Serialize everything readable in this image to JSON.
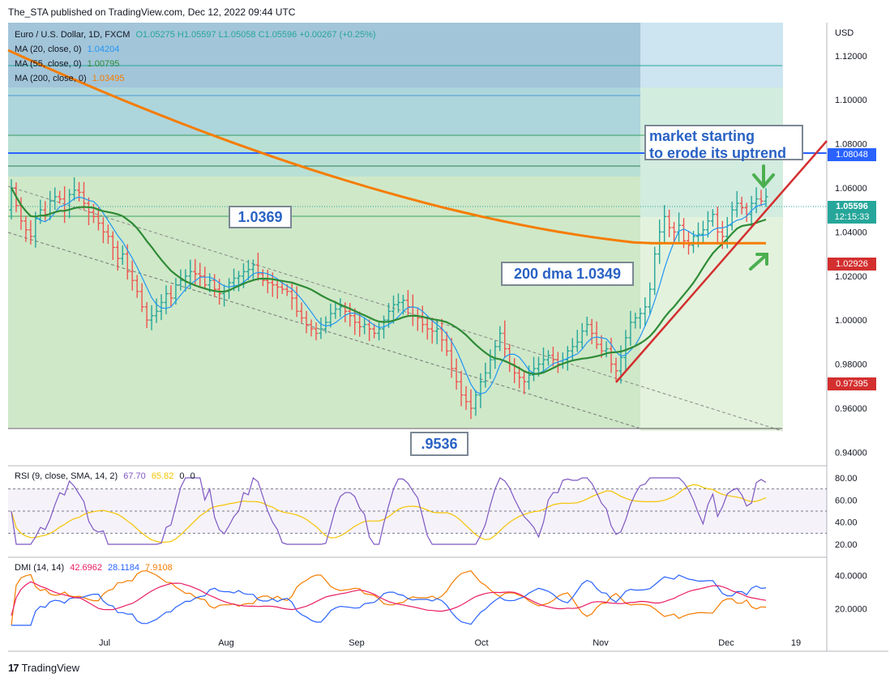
{
  "header": {
    "attribution": "The_STA published on TradingView.com, Dec 12, 2022 09:44 UTC"
  },
  "legend": {
    "symbol": "Euro / U.S. Dollar, 1D, FXCM",
    "ohlc": "O1.05275  H1.05597  L1.05058  C1.05596  +0.00267 (+0.25%)",
    "ma20": {
      "label": "MA (20, close, 0)",
      "value": "1.04204",
      "color": "#2196f3"
    },
    "ma55": {
      "label": "MA (55, close, 0)",
      "value": "1.00795",
      "color": "#2e8b36"
    },
    "ma200": {
      "label": "MA (200, close, 0)",
      "value": "1.03495",
      "color": "#f57c00"
    }
  },
  "rsi_legend": {
    "label": "RSI (9, close, SMA, 14, 2)",
    "v1": "67.70",
    "v2": "65.82",
    "v3": "0",
    "v4": "0"
  },
  "dmi_legend": {
    "label": "DMI (14, 14)",
    "v1": "42.6962",
    "v2": "28.1184",
    "v3": "7.9108"
  },
  "annotations": {
    "note": "market starting\nto erode its uptrend",
    "level_1": "1.0369",
    "level_2": ".9536",
    "dma": "200 dma 1.0349"
  },
  "price_tags": {
    "p1": {
      "text": "1.08048",
      "color": "#2962ff"
    },
    "p2a": "1.05596",
    "p2b": "12:15:33",
    "p2_color": "#26a69a",
    "p3": {
      "text": "1.02926",
      "color": "#d32f2f"
    },
    "p4": {
      "text": "0.97395",
      "color": "#d32f2f"
    }
  },
  "footer": {
    "logo": "17",
    "brand": "TradingView"
  },
  "chart_data": {
    "type": "candlestick",
    "instrument": "EUR/USD",
    "timeframe": "1D",
    "currency": "USD",
    "y_axis": {
      "ticks": [
        "1.12000",
        "1.10000",
        "1.08000",
        "1.06000",
        "1.04000",
        "1.02000",
        "1.00000",
        "0.98000",
        "0.96000",
        "0.94000"
      ],
      "range": [
        0.935,
        1.135
      ]
    },
    "x_axis": {
      "ticks": [
        "Jul",
        "Aug",
        "Sep",
        "Oct",
        "Nov",
        "Dec",
        "19"
      ]
    },
    "start_close": 1.05,
    "closes": [
      1.06,
      1.052,
      1.045,
      1.041,
      1.038,
      1.046,
      1.05,
      1.048,
      1.054,
      1.056,
      1.055,
      1.05,
      1.057,
      1.059,
      1.058,
      1.053,
      1.049,
      1.047,
      1.044,
      1.04,
      1.038,
      1.033,
      1.028,
      1.03,
      1.022,
      1.018,
      1.013,
      1.006,
      1.0,
      1.002,
      1.004,
      1.008,
      1.012,
      1.01,
      1.016,
      1.018,
      1.02,
      1.022,
      1.021,
      1.02,
      1.016,
      1.018,
      1.014,
      1.012,
      1.013,
      1.017,
      1.019,
      1.02,
      1.022,
      1.023,
      1.025,
      1.021,
      1.018,
      1.017,
      1.016,
      1.015,
      1.014,
      1.013,
      1.01,
      1.004,
      1.001,
      0.998,
      0.996,
      0.994,
      0.996,
      0.999,
      1.003,
      1.005,
      1.006,
      1.004,
      1.002,
      0.999,
      0.997,
      0.998,
      0.996,
      0.994,
      0.996,
      1.0,
      1.004,
      1.007,
      1.008,
      1.009,
      1.006,
      1.002,
      1.001,
      0.998,
      0.996,
      0.995,
      0.996,
      0.991,
      0.986,
      0.978,
      0.972,
      0.966,
      0.963,
      0.96,
      0.966,
      0.972,
      0.976,
      0.982,
      0.988,
      0.994,
      0.987,
      0.98,
      0.976,
      0.974,
      0.972,
      0.975,
      0.978,
      0.98,
      0.982,
      0.984,
      0.982,
      0.98,
      0.982,
      0.986,
      0.988,
      0.99,
      0.995,
      0.998,
      0.994,
      0.989,
      0.986,
      0.987,
      0.98,
      0.977,
      0.983,
      0.992,
      0.999,
      1.001,
      1.003,
      1.006,
      1.014,
      1.03,
      1.04,
      1.047,
      1.042,
      1.04,
      1.043,
      1.036,
      1.034,
      1.038,
      1.039,
      1.041,
      1.045,
      1.048,
      1.04,
      1.038,
      1.043,
      1.05,
      1.053,
      1.051,
      1.048,
      1.053,
      1.055,
      1.054,
      1.056
    ],
    "series": [
      {
        "name": "MA (20, close, 0)",
        "last": 1.04204
      },
      {
        "name": "MA (55, close, 0)",
        "last": 1.00795
      },
      {
        "name": "MA (200, close, 0)",
        "last": 1.03495
      }
    ],
    "levels": [
      1.0369,
      0.9536,
      1.08048
    ],
    "rsi": {
      "range": [
        20,
        80
      ],
      "ticks": [
        "80.00",
        "60.00",
        "40.00",
        "20.00"
      ],
      "bands": [
        70,
        50,
        30
      ],
      "last": 67.7,
      "signal_last": 65.82
    },
    "dmi": {
      "ticks": [
        "40.0000",
        "20.0000"
      ],
      "adx_last": 42.6962,
      "plus_di_last": 28.1184,
      "minus_di_last": 7.9108
    }
  }
}
